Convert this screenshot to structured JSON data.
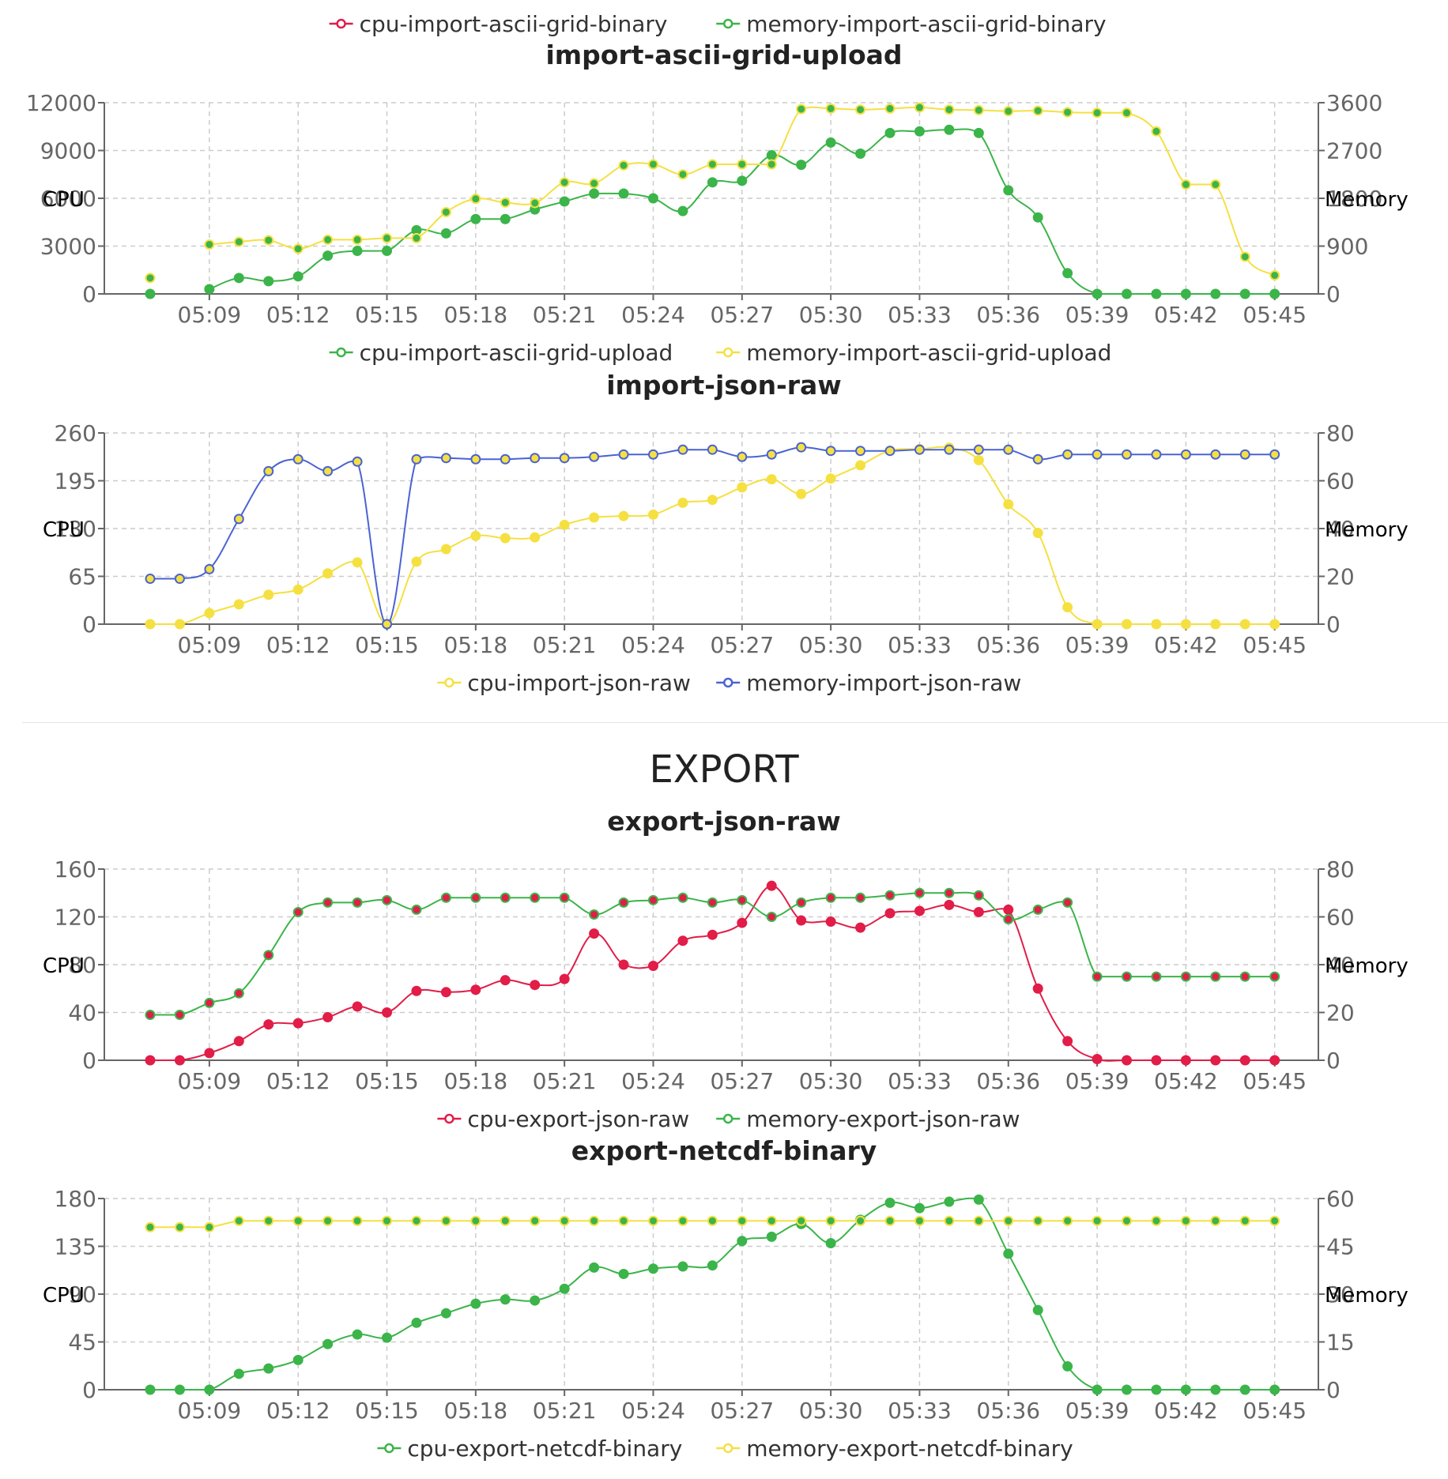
{
  "section": {
    "export_title": "EXPORT"
  },
  "colors": {
    "red": "#e11d48",
    "green": "#3bb44a",
    "yellow": "#f5e042",
    "blue": "#4a63d2",
    "axis": "#666666",
    "grid": "#cccccc"
  },
  "chart_data": [
    {
      "type": "line",
      "title": "import-ascii-grid-upload",
      "ylabel": "CPU",
      "y2label": "Memory",
      "ylim": [
        0,
        12000
      ],
      "y2lim": [
        0,
        3600
      ],
      "yticks": [
        "0",
        "3000",
        "6000",
        "9000",
        "12000"
      ],
      "y2ticks": [
        "0",
        "900",
        "1800",
        "2700",
        "3600"
      ],
      "grid": true,
      "legend_position": "bottom",
      "x": [
        "05:07",
        "05:08",
        "05:09",
        "05:10",
        "05:11",
        "05:12",
        "05:13",
        "05:14",
        "05:15",
        "05:16",
        "05:17",
        "05:18",
        "05:19",
        "05:20",
        "05:21",
        "05:22",
        "05:23",
        "05:24",
        "05:25",
        "05:26",
        "05:27",
        "05:28",
        "05:29",
        "05:30",
        "05:31",
        "05:32",
        "05:33",
        "05:34",
        "05:35",
        "05:36",
        "05:37",
        "05:38",
        "05:39",
        "05:40",
        "05:41",
        "05:42",
        "05:43",
        "05:44",
        "05:45"
      ],
      "xticks": [
        "05:09",
        "05:12",
        "05:15",
        "05:18",
        "05:21",
        "05:24",
        "05:27",
        "05:30",
        "05:33",
        "05:36",
        "05:39",
        "05:42",
        "05:45"
      ],
      "series": [
        {
          "name": "cpu-import-ascii-grid-upload",
          "axis": "left",
          "color": "#3bb44a",
          "marker_fill": "#3bb44a",
          "values": [
            0,
            null,
            300,
            1000,
            800,
            1100,
            2400,
            2700,
            2700,
            4000,
            3800,
            4700,
            4700,
            5300,
            5800,
            6300,
            6300,
            6000,
            5200,
            7000,
            7100,
            8700,
            8100,
            9500,
            8800,
            10100,
            10200,
            10300,
            10100,
            6500,
            4800,
            1300,
            0,
            0,
            0,
            0,
            0,
            0,
            0
          ]
        },
        {
          "name": "memory-import-ascii-grid-upload",
          "axis": "right",
          "color": "#f5e042",
          "marker_fill": "#3bb44a",
          "values": [
            300,
            null,
            930,
            980,
            1010,
            850,
            1020,
            1020,
            1050,
            1050,
            1540,
            1790,
            1720,
            1710,
            2100,
            2080,
            2420,
            2440,
            2250,
            2440,
            2440,
            2440,
            3480,
            3490,
            3470,
            3490,
            3510,
            3470,
            3460,
            3440,
            3450,
            3420,
            3410,
            3410,
            3060,
            2060,
            2060,
            700,
            350
          ]
        }
      ],
      "legend_above": [
        "cpu-import-ascii-grid-binary",
        "memory-import-ascii-grid-binary"
      ],
      "legend_above_colors": [
        "#e11d48",
        "#3bb44a"
      ]
    },
    {
      "type": "line",
      "title": "import-json-raw",
      "ylabel": "CPU",
      "y2label": "Memory",
      "ylim": [
        0,
        260
      ],
      "y2lim": [
        0,
        80
      ],
      "yticks": [
        "0",
        "65",
        "130",
        "195",
        "260"
      ],
      "y2ticks": [
        "0",
        "20",
        "40",
        "60",
        "80"
      ],
      "grid": true,
      "legend_position": "bottom",
      "x": [
        "05:07",
        "05:08",
        "05:09",
        "05:10",
        "05:11",
        "05:12",
        "05:13",
        "05:14",
        "05:15",
        "05:16",
        "05:17",
        "05:18",
        "05:19",
        "05:20",
        "05:21",
        "05:22",
        "05:23",
        "05:24",
        "05:25",
        "05:26",
        "05:27",
        "05:28",
        "05:29",
        "05:30",
        "05:31",
        "05:32",
        "05:33",
        "05:34",
        "05:35",
        "05:36",
        "05:37",
        "05:38",
        "05:39",
        "05:40",
        "05:41",
        "05:42",
        "05:43",
        "05:44",
        "05:45"
      ],
      "xticks": [
        "05:09",
        "05:12",
        "05:15",
        "05:18",
        "05:21",
        "05:24",
        "05:27",
        "05:30",
        "05:33",
        "05:36",
        "05:39",
        "05:42",
        "05:45"
      ],
      "series": [
        {
          "name": "cpu-import-json-raw",
          "axis": "left",
          "color": "#f5e042",
          "marker_fill": "#f5e042",
          "values": [
            0,
            0,
            15,
            27,
            40,
            47,
            69,
            84,
            0,
            85,
            102,
            120,
            117,
            118,
            135,
            145,
            147,
            149,
            165,
            169,
            186,
            197,
            177,
            198,
            216,
            236,
            238,
            240,
            223,
            163,
            124,
            23,
            0,
            0,
            0,
            0,
            0,
            0,
            0
          ]
        },
        {
          "name": "memory-import-json-raw",
          "axis": "right",
          "color": "#4a63d2",
          "marker_fill": "#f5e042",
          "values": [
            19,
            19,
            23,
            44,
            64,
            69,
            64,
            68,
            0,
            69,
            69.5,
            69,
            69,
            69.5,
            69.5,
            70,
            71,
            71,
            73,
            73,
            70,
            71,
            74,
            72.5,
            72.5,
            72.5,
            73,
            73,
            73,
            73,
            69,
            71,
            71,
            71,
            71,
            71,
            71,
            71,
            71
          ]
        }
      ]
    },
    {
      "type": "line",
      "title": "export-json-raw",
      "ylabel": "CPU",
      "y2label": "Memory",
      "ylim": [
        0,
        160
      ],
      "y2lim": [
        0,
        80
      ],
      "yticks": [
        "0",
        "40",
        "80",
        "120",
        "160"
      ],
      "y2ticks": [
        "0",
        "20",
        "40",
        "60",
        "80"
      ],
      "grid": true,
      "legend_position": "bottom",
      "x": [
        "05:07",
        "05:08",
        "05:09",
        "05:10",
        "05:11",
        "05:12",
        "05:13",
        "05:14",
        "05:15",
        "05:16",
        "05:17",
        "05:18",
        "05:19",
        "05:20",
        "05:21",
        "05:22",
        "05:23",
        "05:24",
        "05:25",
        "05:26",
        "05:27",
        "05:28",
        "05:29",
        "05:30",
        "05:31",
        "05:32",
        "05:33",
        "05:34",
        "05:35",
        "05:36",
        "05:37",
        "05:38",
        "05:39",
        "05:40",
        "05:41",
        "05:42",
        "05:43",
        "05:44",
        "05:45"
      ],
      "xticks": [
        "05:09",
        "05:12",
        "05:15",
        "05:18",
        "05:21",
        "05:24",
        "05:27",
        "05:30",
        "05:33",
        "05:36",
        "05:39",
        "05:42",
        "05:45"
      ],
      "series": [
        {
          "name": "cpu-export-json-raw",
          "axis": "left",
          "color": "#e11d48",
          "marker_fill": "#e11d48",
          "values": [
            0,
            0,
            6,
            16,
            30,
            31,
            36,
            45,
            40,
            58,
            57,
            59,
            67,
            63,
            68,
            106,
            80,
            79,
            100,
            105,
            115,
            146,
            117,
            116,
            111,
            123,
            125,
            130,
            124,
            126,
            60,
            16,
            1,
            0,
            0,
            0,
            0,
            0,
            0
          ]
        },
        {
          "name": "memory-export-json-raw",
          "axis": "right",
          "color": "#3bb44a",
          "marker_fill": "#e11d48",
          "values": [
            19,
            19,
            24,
            28,
            44,
            62,
            66,
            66,
            67,
            63,
            68,
            68,
            68,
            68,
            68,
            61,
            66,
            67,
            68,
            66,
            67,
            60,
            66,
            68,
            68,
            69,
            70,
            70,
            69,
            59,
            63,
            66,
            35,
            35,
            35,
            35,
            35,
            35,
            35
          ]
        }
      ]
    },
    {
      "type": "line",
      "title": "export-netcdf-binary",
      "ylabel": "CPU",
      "y2label": "Memory",
      "ylim": [
        0,
        180
      ],
      "y2lim": [
        0,
        60
      ],
      "yticks": [
        "0",
        "45",
        "90",
        "135",
        "180"
      ],
      "y2ticks": [
        "0",
        "15",
        "30",
        "45",
        "60"
      ],
      "grid": true,
      "legend_position": "bottom",
      "x": [
        "05:07",
        "05:08",
        "05:09",
        "05:10",
        "05:11",
        "05:12",
        "05:13",
        "05:14",
        "05:15",
        "05:16",
        "05:17",
        "05:18",
        "05:19",
        "05:20",
        "05:21",
        "05:22",
        "05:23",
        "05:24",
        "05:25",
        "05:26",
        "05:27",
        "05:28",
        "05:29",
        "05:30",
        "05:31",
        "05:32",
        "05:33",
        "05:34",
        "05:35",
        "05:36",
        "05:37",
        "05:38",
        "05:39",
        "05:40",
        "05:41",
        "05:42",
        "05:43",
        "05:44",
        "05:45"
      ],
      "xticks": [
        "05:09",
        "05:12",
        "05:15",
        "05:18",
        "05:21",
        "05:24",
        "05:27",
        "05:30",
        "05:33",
        "05:36",
        "05:39",
        "05:42",
        "05:45"
      ],
      "series": [
        {
          "name": "cpu-export-netcdf-binary",
          "axis": "left",
          "color": "#3bb44a",
          "marker_fill": "#3bb44a",
          "values": [
            0,
            0,
            0,
            15,
            20,
            28,
            43,
            52,
            49,
            63,
            72,
            81,
            85,
            84,
            95,
            115,
            109,
            114,
            116,
            117,
            140,
            144,
            156,
            138,
            160,
            176,
            171,
            177,
            179,
            128,
            75,
            22,
            0,
            0,
            0,
            0,
            0,
            0,
            0
          ]
        },
        {
          "name": "memory-export-netcdf-binary",
          "axis": "right",
          "color": "#f5e042",
          "marker_fill": "#3bb44a",
          "values": [
            51,
            51,
            51,
            53,
            53,
            53,
            53,
            53,
            53,
            53,
            53,
            53,
            53,
            53,
            53,
            53,
            53,
            53,
            53,
            53,
            53,
            53,
            53,
            53,
            53,
            53,
            53,
            53,
            53,
            53,
            53,
            53,
            53,
            53,
            53,
            53,
            53,
            53,
            53
          ]
        }
      ]
    }
  ]
}
